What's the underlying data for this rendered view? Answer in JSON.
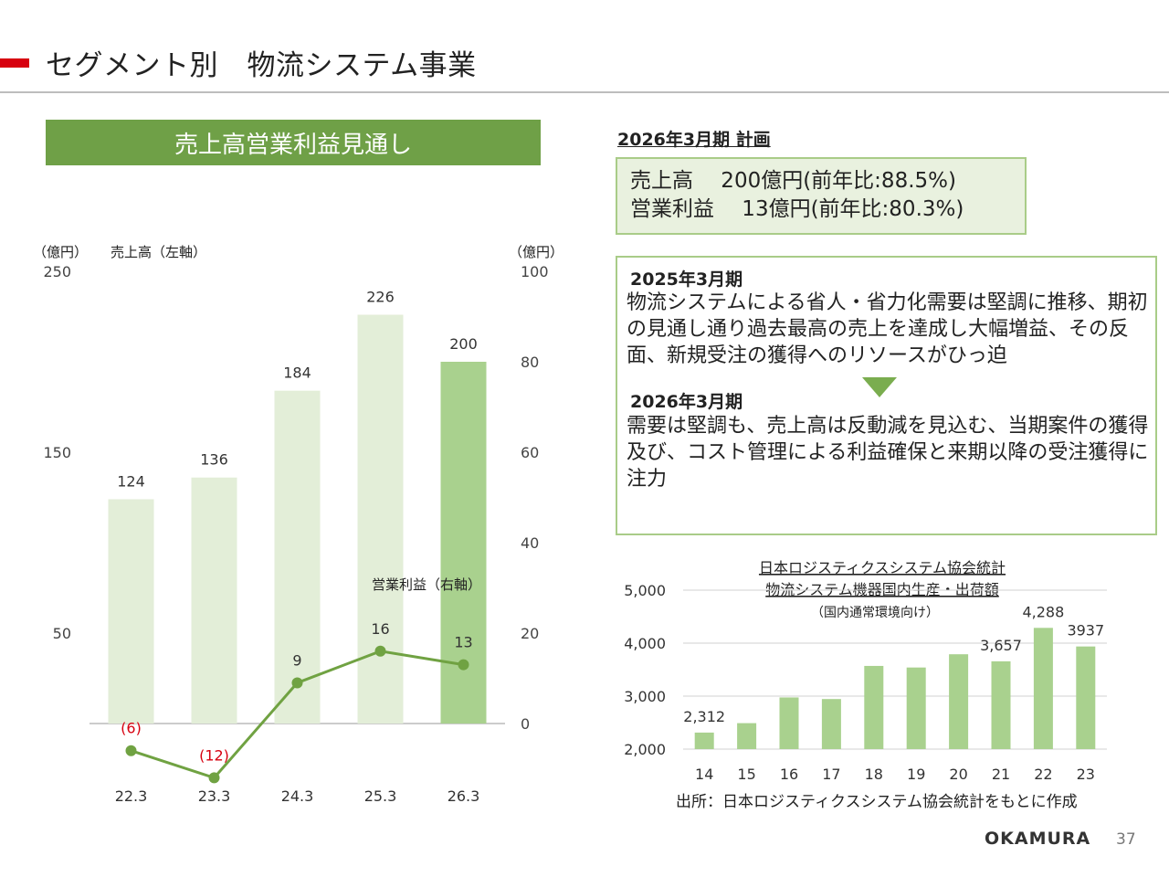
{
  "page": {
    "title": "セグメント別　物流システム事業",
    "page_number": "37",
    "logo": "OKAMURA"
  },
  "left_panel": {
    "header": "売上高営業利益見通し"
  },
  "plan": {
    "title": "2026年3月期  計画",
    "line1": "売上高　 200億円(前年比:88.5%)",
    "line2": "営業利益　 13億円(前年比:80.3%)"
  },
  "outlook": {
    "fy2025_head": "2025年3月期",
    "fy2025_text": "物流システムによる省人・省力化需要は堅調に推移、期初の見通し通り過去最高の売上を達成し大幅増益、その反面、新規受注の獲得へのリソースがひっ迫",
    "fy2026_head": "2026年3月期",
    "fy2026_text": "需要は堅調も、売上高は反動減を見込む、当期案件の獲得及び、コスト管理による利益確保と来期以降の受注獲得に注力"
  },
  "colors": {
    "accent_red": "#d7000f",
    "green_dark": "#6fa047",
    "bar_light": "#e3eed8",
    "bar_forecast": "#a9d18e",
    "line_green": "#70a242",
    "neg_label": "#d7000f",
    "stat_bar": "#a9d18e"
  },
  "chart_data": [
    {
      "type": "bar",
      "unit_left": "（億円）",
      "unit_right": "（億円）",
      "left_series_label": "売上高（左軸）",
      "right_series_label": "営業利益（右軸）",
      "categories": [
        "22.3",
        "23.3",
        "24.3",
        "25.3",
        "26.3"
      ],
      "series": [
        {
          "name": "売上高（左軸）",
          "axis": "left",
          "type": "bar",
          "values": [
            124,
            136,
            184,
            226,
            200
          ],
          "labels": [
            "124",
            "136",
            "184",
            "226",
            "200"
          ],
          "forecast_index": 4
        },
        {
          "name": "営業利益（右軸）",
          "axis": "right",
          "type": "line",
          "values": [
            -6,
            -12,
            9,
            16,
            13
          ],
          "labels": [
            "(6)",
            "(12)",
            "9",
            "16",
            "13"
          ]
        }
      ],
      "left_ylim": [
        0,
        250
      ],
      "left_ticks": [
        50,
        150,
        250
      ],
      "right_ylim": [
        0,
        100
      ],
      "right_ticks": [
        0,
        20,
        40,
        60,
        80,
        100
      ],
      "grid": false
    },
    {
      "type": "bar",
      "title_lines": [
        "日本ロジスティクスシステム協会統計",
        "物流システム機器国内生産・出荷額"
      ],
      "subtitle": "（国内通常環境向け）",
      "categories": [
        "14",
        "15",
        "16",
        "17",
        "18",
        "19",
        "20",
        "21",
        "22",
        "23"
      ],
      "values": [
        2312,
        2490,
        2975,
        2945,
        3570,
        3540,
        3790,
        3657,
        4288,
        3937
      ],
      "value_labels": [
        "2,312",
        "",
        "",
        "",
        "",
        "",
        "",
        "3,657",
        "4,288",
        "3937"
      ],
      "ylim": [
        2000,
        5000
      ],
      "yticks": [
        2000,
        3000,
        4000,
        5000
      ],
      "ytick_labels": [
        "2,000",
        "3,000",
        "4,000",
        "5,000"
      ],
      "grid": true,
      "source": "出所：日本ロジスティクスシステム協会統計をもとに作成"
    }
  ]
}
